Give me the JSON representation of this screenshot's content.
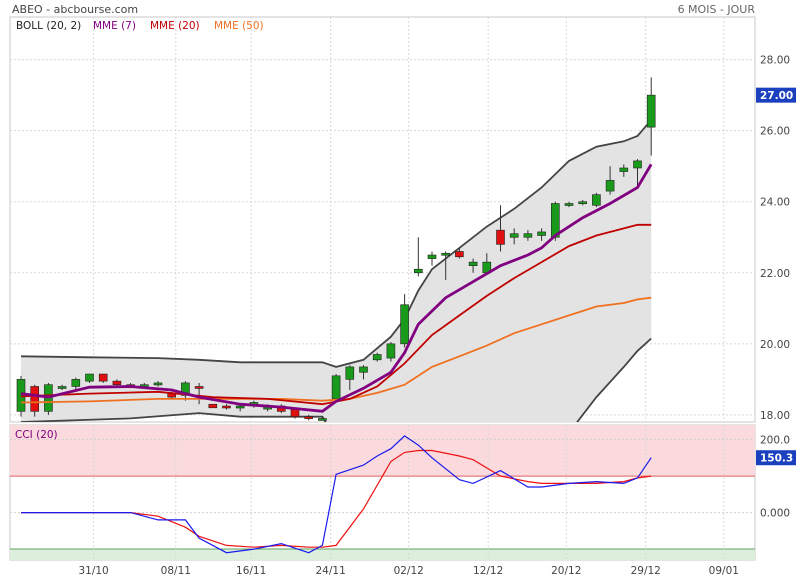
{
  "header": {
    "title": "ABEO - abcbourse.com",
    "period": "6 MOIS - JOUR"
  },
  "colors": {
    "up": "#1a9a1a",
    "down": "#e01010",
    "boll": "#444444",
    "boll_fill": "#e3e3e3",
    "mme7": "#800080",
    "mme20": "#c00000",
    "mme50": "#f07020",
    "cci": "#1a1aee",
    "cci_signal": "#ee1111",
    "cci_high_zone": "#fadadd",
    "cci_low_zone": "#dcefdc",
    "last_badge": "#1a3fbf"
  },
  "chart_data": [
    {
      "type": "candlestick",
      "legend": [
        {
          "label": "BOLL (20, 2)",
          "color": "#222222"
        },
        {
          "label": "MME (7)",
          "color": "#800080"
        },
        {
          "label": "MME (20)",
          "color": "#c00000"
        },
        {
          "label": "MME (50)",
          "color": "#f07020"
        }
      ],
      "ylim": [
        17.8,
        29.2
      ],
      "y_ticks": [
        "18.00",
        "20.00",
        "22.00",
        "24.00",
        "26.00",
        "28.00"
      ],
      "last_price": "27.00",
      "x_ticks": [
        "31/10",
        "08/11",
        "16/11",
        "24/11",
        "02/12",
        "12/12",
        "20/12",
        "29/12",
        "09/01"
      ],
      "candles": [
        {
          "x": 0,
          "o": 18.1,
          "c": 19.0,
          "h": 19.1,
          "l": 17.95
        },
        {
          "x": 1,
          "o": 18.8,
          "c": 18.1,
          "h": 18.85,
          "l": 17.95
        },
        {
          "x": 2,
          "o": 18.1,
          "c": 18.85,
          "h": 18.9,
          "l": 18.0
        },
        {
          "x": 3,
          "o": 18.75,
          "c": 18.8,
          "h": 18.85,
          "l": 18.7
        },
        {
          "x": 4,
          "o": 18.8,
          "c": 19.0,
          "h": 19.05,
          "l": 18.65
        },
        {
          "x": 5,
          "o": 18.95,
          "c": 19.15,
          "h": 19.15,
          "l": 18.9
        },
        {
          "x": 6,
          "o": 19.15,
          "c": 18.95,
          "h": 19.15,
          "l": 18.9
        },
        {
          "x": 7,
          "o": 18.95,
          "c": 18.85,
          "h": 19.0,
          "l": 18.8
        },
        {
          "x": 8,
          "o": 18.85,
          "c": 18.8,
          "h": 18.9,
          "l": 18.75
        },
        {
          "x": 9,
          "o": 18.8,
          "c": 18.85,
          "h": 18.9,
          "l": 18.75
        },
        {
          "x": 10,
          "o": 18.85,
          "c": 18.9,
          "h": 18.95,
          "l": 18.8
        },
        {
          "x": 11,
          "o": 18.6,
          "c": 18.5,
          "h": 18.65,
          "l": 18.45
        },
        {
          "x": 12,
          "o": 18.55,
          "c": 18.9,
          "h": 18.95,
          "l": 18.4
        },
        {
          "x": 13,
          "o": 18.8,
          "c": 18.75,
          "h": 18.9,
          "l": 18.3
        },
        {
          "x": 14,
          "o": 18.3,
          "c": 18.2,
          "h": 18.3,
          "l": 18.2
        },
        {
          "x": 15,
          "o": 18.25,
          "c": 18.2,
          "h": 18.3,
          "l": 18.15
        },
        {
          "x": 16,
          "o": 18.2,
          "c": 18.25,
          "h": 18.3,
          "l": 18.1
        },
        {
          "x": 17,
          "o": 18.25,
          "c": 18.35,
          "h": 18.4,
          "l": 18.2
        },
        {
          "x": 18,
          "o": 18.2,
          "c": 18.22,
          "h": 18.3,
          "l": 18.1
        },
        {
          "x": 19,
          "o": 18.25,
          "c": 18.1,
          "h": 18.3,
          "l": 18.05
        },
        {
          "x": 20,
          "o": 18.15,
          "c": 17.95,
          "h": 18.2,
          "l": 17.9
        },
        {
          "x": 21,
          "o": 17.95,
          "c": 17.9,
          "h": 18.0,
          "l": 17.85
        },
        {
          "x": 22,
          "o": 17.9,
          "c": 17.9,
          "h": 17.95,
          "l": 17.85
        },
        {
          "x": 23,
          "o": 18.45,
          "c": 19.1,
          "h": 19.15,
          "l": 18.4
        },
        {
          "x": 24,
          "o": 19.0,
          "c": 19.35,
          "h": 19.4,
          "l": 18.7
        },
        {
          "x": 25,
          "o": 19.2,
          "c": 19.35,
          "h": 19.4,
          "l": 19.0
        },
        {
          "x": 26,
          "o": 19.55,
          "c": 19.7,
          "h": 19.75,
          "l": 19.5
        },
        {
          "x": 27,
          "o": 19.6,
          "c": 20.0,
          "h": 20.05,
          "l": 19.5
        },
        {
          "x": 28,
          "o": 20.0,
          "c": 21.1,
          "h": 21.4,
          "l": 19.9
        },
        {
          "x": 29,
          "o": 22.0,
          "c": 22.1,
          "h": 23.0,
          "l": 21.9
        },
        {
          "x": 30,
          "o": 22.4,
          "c": 22.5,
          "h": 22.6,
          "l": 22.2
        },
        {
          "x": 31,
          "o": 22.5,
          "c": 22.55,
          "h": 22.6,
          "l": 21.8
        },
        {
          "x": 32,
          "o": 22.6,
          "c": 22.45,
          "h": 22.7,
          "l": 22.4
        },
        {
          "x": 33,
          "o": 22.2,
          "c": 22.3,
          "h": 22.4,
          "l": 22.0
        },
        {
          "x": 34,
          "o": 22.0,
          "c": 22.3,
          "h": 22.55,
          "l": 21.95
        },
        {
          "x": 35,
          "o": 23.2,
          "c": 22.8,
          "h": 23.9,
          "l": 22.6
        },
        {
          "x": 36,
          "o": 23.0,
          "c": 23.1,
          "h": 23.25,
          "l": 22.8
        },
        {
          "x": 37,
          "o": 23.0,
          "c": 23.1,
          "h": 23.2,
          "l": 22.9
        },
        {
          "x": 38,
          "o": 23.05,
          "c": 23.15,
          "h": 23.25,
          "l": 22.9
        },
        {
          "x": 39,
          "o": 23.0,
          "c": 23.95,
          "h": 24.0,
          "l": 22.9
        },
        {
          "x": 40,
          "o": 23.95,
          "c": 23.95,
          "h": 24.0,
          "l": 23.85
        },
        {
          "x": 41,
          "o": 23.95,
          "c": 24.0,
          "h": 24.05,
          "l": 23.9
        },
        {
          "x": 42,
          "o": 23.9,
          "c": 24.2,
          "h": 24.25,
          "l": 23.85
        },
        {
          "x": 43,
          "o": 24.3,
          "c": 24.6,
          "h": 25.0,
          "l": 24.2
        },
        {
          "x": 44,
          "o": 24.85,
          "c": 24.95,
          "h": 25.05,
          "l": 24.7
        },
        {
          "x": 45,
          "o": 24.95,
          "c": 25.15,
          "h": 25.2,
          "l": 24.4
        },
        {
          "x": 46,
          "o": 26.1,
          "c": 27.0,
          "h": 27.5,
          "l": 25.3
        }
      ],
      "boll_upper": [
        [
          0,
          19.65
        ],
        [
          5,
          19.62
        ],
        [
          10,
          19.6
        ],
        [
          13,
          19.55
        ],
        [
          16,
          19.48
        ],
        [
          19,
          19.48
        ],
        [
          22,
          19.48
        ],
        [
          23,
          19.35
        ],
        [
          25,
          19.55
        ],
        [
          27,
          20.2
        ],
        [
          28,
          20.7
        ],
        [
          29,
          21.5
        ],
        [
          30,
          22.1
        ],
        [
          32,
          22.7
        ],
        [
          34,
          23.3
        ],
        [
          36,
          23.8
        ],
        [
          38,
          24.4
        ],
        [
          40,
          25.15
        ],
        [
          42,
          25.55
        ],
        [
          44,
          25.7
        ],
        [
          45,
          25.85
        ],
        [
          46,
          26.3
        ]
      ],
      "boll_lower": [
        [
          0,
          17.8
        ],
        [
          8,
          17.9
        ],
        [
          13,
          18.05
        ],
        [
          16,
          17.95
        ],
        [
          19,
          17.95
        ],
        [
          22,
          17.95
        ],
        [
          23,
          17.3
        ],
        [
          25,
          16.8
        ],
        [
          30,
          16.8
        ],
        [
          40,
          17.5
        ],
        [
          42,
          18.5
        ],
        [
          44,
          19.35
        ],
        [
          45,
          19.8
        ],
        [
          46,
          20.15
        ]
      ],
      "mme7": [
        [
          0,
          18.6
        ],
        [
          2,
          18.5
        ],
        [
          5,
          18.78
        ],
        [
          8,
          18.8
        ],
        [
          11,
          18.7
        ],
        [
          13,
          18.5
        ],
        [
          16,
          18.3
        ],
        [
          19,
          18.22
        ],
        [
          22,
          18.1
        ],
        [
          23,
          18.38
        ],
        [
          25,
          18.75
        ],
        [
          27,
          19.2
        ],
        [
          28,
          19.75
        ],
        [
          29,
          20.55
        ],
        [
          31,
          21.3
        ],
        [
          33,
          21.75
        ],
        [
          35,
          22.2
        ],
        [
          37,
          22.5
        ],
        [
          38,
          22.7
        ],
        [
          39,
          23.05
        ],
        [
          41,
          23.55
        ],
        [
          43,
          23.95
        ],
        [
          45,
          24.4
        ],
        [
          46,
          25.05
        ]
      ],
      "mme20": [
        [
          0,
          18.52
        ],
        [
          5,
          18.6
        ],
        [
          10,
          18.65
        ],
        [
          14,
          18.5
        ],
        [
          18,
          18.45
        ],
        [
          22,
          18.3
        ],
        [
          24,
          18.45
        ],
        [
          26,
          18.8
        ],
        [
          28,
          19.45
        ],
        [
          30,
          20.25
        ],
        [
          32,
          20.8
        ],
        [
          34,
          21.35
        ],
        [
          36,
          21.85
        ],
        [
          38,
          22.3
        ],
        [
          40,
          22.75
        ],
        [
          42,
          23.05
        ],
        [
          44,
          23.25
        ],
        [
          45,
          23.35
        ],
        [
          46,
          23.35
        ]
      ],
      "mme50": [
        [
          0,
          18.35
        ],
        [
          5,
          18.38
        ],
        [
          10,
          18.45
        ],
        [
          15,
          18.45
        ],
        [
          19,
          18.45
        ],
        [
          22,
          18.4
        ],
        [
          24,
          18.45
        ],
        [
          26,
          18.62
        ],
        [
          28,
          18.85
        ],
        [
          30,
          19.35
        ],
        [
          32,
          19.65
        ],
        [
          34,
          19.95
        ],
        [
          36,
          20.3
        ],
        [
          38,
          20.55
        ],
        [
          40,
          20.8
        ],
        [
          42,
          21.05
        ],
        [
          44,
          21.15
        ],
        [
          45,
          21.25
        ],
        [
          46,
          21.3
        ]
      ]
    },
    {
      "type": "line",
      "title": "CCI (20)",
      "ylim": [
        -130,
        240
      ],
      "y_ticks": [
        "200.0",
        "0.000"
      ],
      "last_value": "150.3",
      "zones": {
        "high": 100,
        "low": -100
      },
      "series": [
        {
          "values": [
            [
              0,
              0
            ],
            [
              2,
              0
            ],
            [
              5,
              0
            ],
            [
              8,
              0
            ],
            [
              10,
              -20
            ],
            [
              12,
              -20
            ],
            [
              13,
              -70
            ],
            [
              15,
              -110
            ],
            [
              17,
              -100
            ],
            [
              19,
              -85
            ],
            [
              21,
              -110
            ],
            [
              22,
              -90
            ],
            [
              23,
              105
            ],
            [
              25,
              130
            ],
            [
              26,
              155
            ],
            [
              27,
              175
            ],
            [
              28,
              210
            ],
            [
              29,
              185
            ],
            [
              30,
              150
            ],
            [
              32,
              90
            ],
            [
              33,
              80
            ],
            [
              35,
              115
            ],
            [
              37,
              70
            ],
            [
              38,
              70
            ],
            [
              40,
              80
            ],
            [
              42,
              85
            ],
            [
              44,
              80
            ],
            [
              45,
              95
            ],
            [
              46,
              150.3
            ]
          ]
        },
        {
          "values": [
            [
              0,
              0
            ],
            [
              2,
              0
            ],
            [
              5,
              0
            ],
            [
              8,
              0
            ],
            [
              10,
              -10
            ],
            [
              12,
              -40
            ],
            [
              13,
              -65
            ],
            [
              15,
              -90
            ],
            [
              17,
              -95
            ],
            [
              19,
              -90
            ],
            [
              21,
              -95
            ],
            [
              22,
              -95
            ],
            [
              23,
              -90
            ],
            [
              25,
              10
            ],
            [
              27,
              140
            ],
            [
              28,
              165
            ],
            [
              29,
              170
            ],
            [
              30,
              170
            ],
            [
              32,
              155
            ],
            [
              33,
              145
            ],
            [
              35,
              100
            ],
            [
              37,
              85
            ],
            [
              38,
              80
            ],
            [
              40,
              80
            ],
            [
              42,
              80
            ],
            [
              44,
              85
            ],
            [
              45,
              95
            ],
            [
              46,
              100
            ]
          ]
        }
      ]
    }
  ]
}
